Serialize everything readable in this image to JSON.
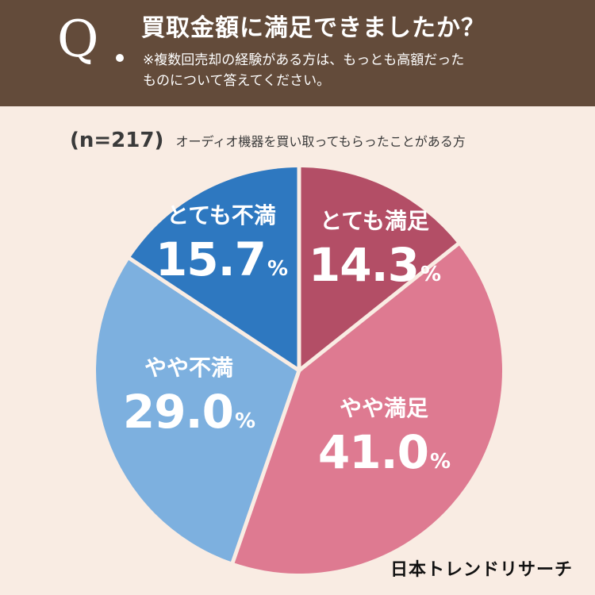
{
  "header": {
    "q_mark": "Q",
    "question": "買取金額に満足できましたか？",
    "note": "※複数回売却の経験がある方は、もっとも高額だった\nものについて答えてください。"
  },
  "sample": {
    "n_label": "(n=217)",
    "description": "オーディオ機器を買い取ってもらったことがある方"
  },
  "chart_data": {
    "type": "pie",
    "title": "買取金額に満足できましたか？",
    "unit": "%",
    "start": "12 o'clock",
    "direction": "clockwise",
    "slices": [
      {
        "label": "とても満足",
        "value": 14.3,
        "display": "14.3",
        "color": "#b34e66"
      },
      {
        "label": "やや満足",
        "value": 41.0,
        "display": "41.0",
        "color": "#de7a91"
      },
      {
        "label": "やや不満",
        "value": 29.0,
        "display": "29.0",
        "color": "#7db0df"
      },
      {
        "label": "とても不満",
        "value": 15.7,
        "display": "15.7",
        "color": "#2e78c0"
      }
    ]
  },
  "brand": {
    "logo": "日本トレンドリサーチ"
  },
  "colors": {
    "background": "#f9ece3",
    "header": "#634b3a",
    "separator": "#f9ece3"
  }
}
